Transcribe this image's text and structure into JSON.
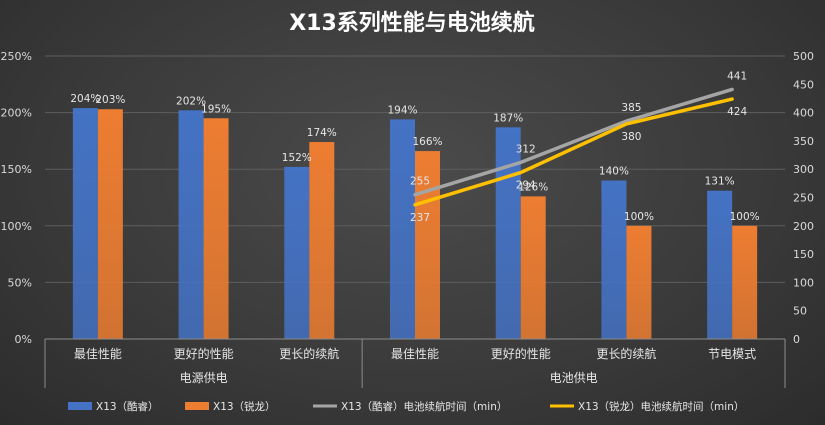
{
  "chart_data": {
    "type": "bar",
    "title": "X13系列性能与电池续航",
    "groups": [
      {
        "name": "电源供电",
        "categories": [
          "最佳性能",
          "更好的性能",
          "更长的续航"
        ]
      },
      {
        "name": "电池供电",
        "categories": [
          "最佳性能",
          "更好的性能",
          "更长的续航",
          "节电模式"
        ]
      }
    ],
    "categories": [
      "最佳性能",
      "更好的性能",
      "更长的续航",
      "最佳性能",
      "更好的性能",
      "更长的续航",
      "节电模式"
    ],
    "series": [
      {
        "name": "X13（酷睿）",
        "kind": "bar",
        "axis": "left",
        "color": "#4472c4",
        "values": [
          204,
          202,
          152,
          194,
          187,
          140,
          131
        ],
        "labels": [
          "204%",
          "202%",
          "152%",
          "194%",
          "187%",
          "140%",
          "131%"
        ]
      },
      {
        "name": "X13（锐龙）",
        "kind": "bar",
        "axis": "left",
        "color": "#ed7d31",
        "values": [
          203,
          195,
          174,
          166,
          126,
          100,
          100
        ],
        "labels": [
          "203%",
          "195%",
          "174%",
          "166%",
          "126%",
          "100%",
          "100%"
        ]
      },
      {
        "name": "X13（酷睿）电池续航时间（min）",
        "kind": "line",
        "axis": "right",
        "color": "#a5a5a5",
        "values": [
          null,
          null,
          null,
          255,
          312,
          385,
          441
        ],
        "labels": [
          "",
          "",
          "",
          "255",
          "312",
          "385",
          "441"
        ]
      },
      {
        "name": "X13（锐龙）电池续航时间（min）",
        "kind": "line",
        "axis": "right",
        "color": "#ffc000",
        "values": [
          null,
          null,
          null,
          237,
          294,
          380,
          424
        ],
        "labels": [
          "",
          "",
          "",
          "237",
          "294",
          "380",
          "424"
        ]
      }
    ],
    "y_left": {
      "ylim": [
        0,
        250
      ],
      "ticks": [
        "0%",
        "50%",
        "100%",
        "150%",
        "200%",
        "250%"
      ]
    },
    "y_right": {
      "ylim": [
        0,
        500
      ],
      "ticks": [
        "0",
        "50",
        "100",
        "150",
        "200",
        "250",
        "300",
        "350",
        "400",
        "450",
        "500"
      ]
    },
    "grid": true,
    "legend_position": "bottom"
  }
}
